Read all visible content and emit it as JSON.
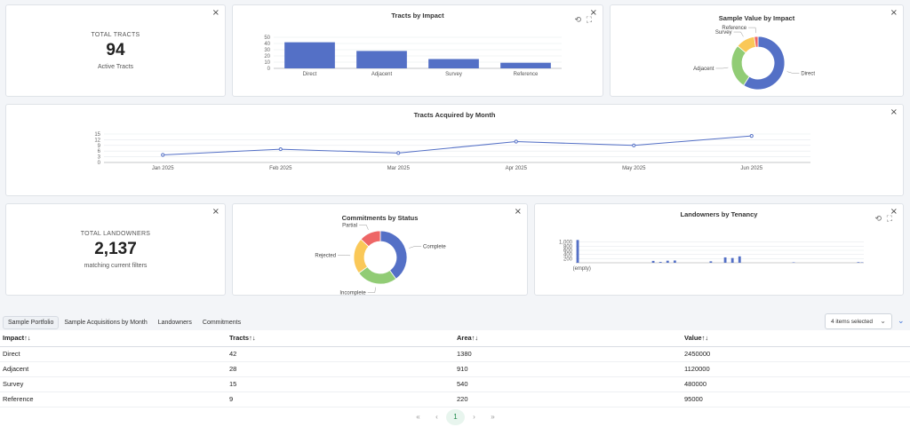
{
  "kpi_tracts": {
    "label": "TOTAL TRACTS",
    "value": "94",
    "sub": "Active Tracts"
  },
  "kpi_landowners": {
    "label": "TOTAL LANDOWNERS",
    "value": "2,137",
    "sub": "matching current filters"
  },
  "close_glyph": "×",
  "icons": {
    "reset": "⟲",
    "expand": "⛶"
  },
  "tracts_by_impact": {
    "title": "Tracts by Impact",
    "chart_data": {
      "type": "bar",
      "categories": [
        "Direct",
        "Adjacent",
        "Survey",
        "Reference"
      ],
      "values": [
        42,
        28,
        15,
        9
      ],
      "ylim": [
        0,
        50
      ],
      "yticks": [
        "50",
        "40",
        "30",
        "20",
        "10",
        "0"
      ],
      "color": "#5470c6"
    }
  },
  "sample_value": {
    "title": "Sample Value by Impact",
    "chart_data": {
      "type": "pie",
      "labels": [
        "Direct",
        "Adjacent",
        "Survey",
        "Reference"
      ],
      "values": [
        2450000,
        1120000,
        480000,
        95000
      ],
      "colors": [
        "#5470c6",
        "#91cc75",
        "#fac858",
        "#ee6666"
      ]
    }
  },
  "acquired_by_month": {
    "title": "Tracts Acquired by Month",
    "chart_data": {
      "type": "line",
      "x": [
        "Jan 2025",
        "Feb 2025",
        "Mar 2025",
        "Apr 2025",
        "May 2025",
        "Jun 2025"
      ],
      "values": [
        4,
        7,
        5,
        11,
        9,
        14
      ],
      "ylim": [
        0,
        15
      ],
      "yticks": [
        "15",
        "12",
        "9",
        "6",
        "3",
        "0"
      ],
      "color": "#5470c6"
    }
  },
  "commitments_status": {
    "title": "Commitments by Status",
    "chart_data": {
      "type": "pie",
      "labels": [
        "Complete",
        "Incomplete",
        "Rejected",
        "Partial"
      ],
      "values": [
        40,
        25,
        22,
        13
      ],
      "colors": [
        "#5470c6",
        "#91cc75",
        "#fac858",
        "#ee6666"
      ]
    }
  },
  "tenancy": {
    "title": "Landowners by Tenancy",
    "chart_data": {
      "type": "bar",
      "categories": [
        "(empty)",
        "",
        "",
        "",
        "",
        "",
        "",
        "",
        "",
        "",
        "",
        "",
        "",
        "",
        "",
        "",
        "",
        "",
        "",
        "",
        "",
        "",
        "",
        "",
        "",
        "",
        "",
        "",
        "",
        "",
        "",
        "",
        "",
        "",
        "",
        "",
        "",
        "",
        "",
        "",
        "",
        "",
        "",
        "",
        "",
        "",
        "",
        "",
        "",
        "",
        "",
        "",
        "",
        "",
        "",
        "",
        "",
        "",
        "",
        "",
        "",
        "",
        "",
        "",
        "",
        "",
        "",
        "",
        "",
        "",
        "",
        "",
        "",
        "",
        "",
        "",
        "",
        "",
        "",
        ""
      ],
      "values": [
        1100,
        0,
        0,
        0,
        0,
        0,
        0,
        0,
        0,
        0,
        0,
        0,
        0,
        0,
        0,
        0,
        0,
        0,
        0,
        0,
        0,
        90,
        0,
        40,
        0,
        100,
        0,
        110,
        0,
        0,
        0,
        0,
        0,
        0,
        0,
        0,
        0,
        70,
        0,
        0,
        0,
        260,
        0,
        230,
        0,
        310,
        0,
        0,
        0,
        0,
        0,
        0,
        0,
        0,
        0,
        0,
        0,
        0,
        0,
        0,
        20,
        0,
        0,
        0,
        0,
        0,
        0,
        0,
        0,
        0,
        0,
        0,
        0,
        0,
        0,
        0,
        0,
        0,
        30,
        20
      ],
      "ylim": [
        0,
        1200
      ],
      "yticks": [
        "1,000",
        "800",
        "600",
        "400",
        "200"
      ],
      "color": "#5470c6"
    }
  },
  "tabs": [
    "Sample Portfolio",
    "Sample Acquisitions by Month",
    "Landowners",
    "Commitments"
  ],
  "select": {
    "value": "4 items selected",
    "chevron": "⌄"
  },
  "expand_glyph": "⌄",
  "table": {
    "headers": [
      "Impact↑↓",
      "Tracts↑↓",
      "Area↑↓",
      "Value↑↓"
    ],
    "rows": [
      [
        "Direct",
        "42",
        "1380",
        "2450000"
      ],
      [
        "Adjacent",
        "28",
        "910",
        "1120000"
      ],
      [
        "Survey",
        "15",
        "540",
        "480000"
      ],
      [
        "Reference",
        "9",
        "220",
        "95000"
      ]
    ]
  },
  "pager": {
    "first": "«",
    "prev": "‹",
    "page": "1",
    "next": "›",
    "last": "»"
  }
}
